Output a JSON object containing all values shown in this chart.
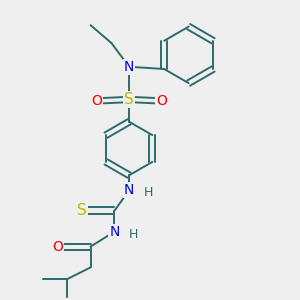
{
  "bg_color": "#efefef",
  "bond_color": "#2d6b6b",
  "bond_width": 1.4,
  "figsize": [
    3.0,
    3.0
  ],
  "dpi": 100,
  "colors": {
    "N": "#0000ee",
    "S": "#bbbb00",
    "O": "#ee0000",
    "H": "#2d6b6b",
    "C": "#2d6b6b"
  }
}
